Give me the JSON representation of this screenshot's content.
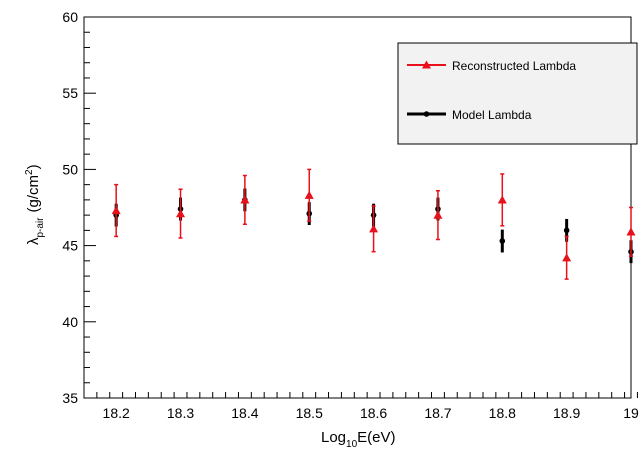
{
  "chart_data": {
    "type": "scatter",
    "xlabel": {
      "main": "Log",
      "sub": "10",
      "tail": "E(eV)"
    },
    "ylabel": {
      "main": "λ",
      "sub": "p-air",
      "tail": "(g/cm",
      "sup": "2",
      "close": ")"
    },
    "xlim": [
      18.15,
      19.0
    ],
    "ylim": [
      35,
      60
    ],
    "x_ticks": [
      18.2,
      18.3,
      18.4,
      18.5,
      18.6,
      18.7,
      18.8,
      18.9,
      19.0
    ],
    "x_tick_labels": [
      "18.2",
      "18.3",
      "18.4",
      "18.5",
      "18.6",
      "18.7",
      "18.8",
      "18.9",
      "19"
    ],
    "y_ticks": [
      35,
      40,
      45,
      50,
      55,
      60
    ],
    "y_tick_labels": [
      "35",
      "40",
      "45",
      "50",
      "55",
      "60"
    ],
    "grid": false,
    "legend_position": "top-right",
    "series": [
      {
        "name": "Reconstructed Lambda",
        "color": "#e8101a",
        "marker": "triangle",
        "x": [
          18.2,
          18.3,
          18.4,
          18.5,
          18.6,
          18.7,
          18.8,
          18.9,
          19.0
        ],
        "y": [
          47.3,
          47.1,
          48.0,
          48.3,
          46.1,
          47.0,
          48.0,
          44.2,
          45.9
        ],
        "yerr": [
          1.7,
          1.6,
          1.6,
          1.7,
          1.5,
          1.6,
          1.7,
          1.4,
          1.6
        ]
      },
      {
        "name": "Model Lambda",
        "color": "#000000",
        "marker": "circle",
        "x": [
          18.2,
          18.3,
          18.4,
          18.5,
          18.6,
          18.7,
          18.8,
          18.9,
          19.0
        ],
        "y": [
          47.0,
          47.4,
          48.0,
          47.1,
          47.0,
          47.4,
          45.3,
          46.0,
          44.6
        ],
        "yerr": [
          0.75,
          0.75,
          0.75,
          0.75,
          0.75,
          0.75,
          0.75,
          0.75,
          0.75
        ]
      }
    ]
  }
}
